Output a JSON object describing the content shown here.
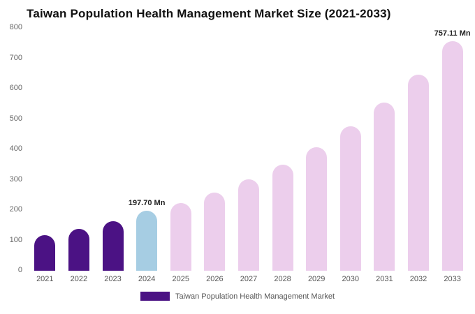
{
  "title": "Taiwan Population Health Management Market Size (2021-2033)",
  "legend": {
    "label": "Taiwan Population Health Management Market",
    "swatch_color": "#4B1284"
  },
  "colors": {
    "historical": "#4B1284",
    "current": "#A6CDE3",
    "forecast": "#ECCEEC"
  },
  "chart_data": {
    "type": "bar",
    "title": "Taiwan Population Health Management Market Size (2021-2033)",
    "categories": [
      "2021",
      "2022",
      "2023",
      "2024",
      "2025",
      "2026",
      "2027",
      "2028",
      "2029",
      "2030",
      "2031",
      "2032",
      "2033"
    ],
    "values": [
      118,
      138,
      163,
      197.7,
      222,
      257,
      301,
      350,
      408,
      475,
      553,
      645,
      757.11
    ],
    "bar_colors": [
      "#4B1284",
      "#4B1284",
      "#4B1284",
      "#A6CDE3",
      "#ECCEEC",
      "#ECCEEC",
      "#ECCEEC",
      "#ECCEEC",
      "#ECCEEC",
      "#ECCEEC",
      "#ECCEEC",
      "#ECCEEC",
      "#ECCEEC"
    ],
    "annotations": [
      {
        "category": "2024",
        "text": "197.70 Mn"
      },
      {
        "category": "2033",
        "text": "757.11 Mn"
      }
    ],
    "xlabel": "",
    "ylabel": "",
    "ylim": [
      0,
      800
    ],
    "yticks": [
      0,
      100,
      200,
      300,
      400,
      500,
      600,
      700,
      800
    ],
    "grid": false,
    "legend_position": "bottom",
    "legend_entries": [
      "Taiwan Population Health Management Market"
    ]
  }
}
